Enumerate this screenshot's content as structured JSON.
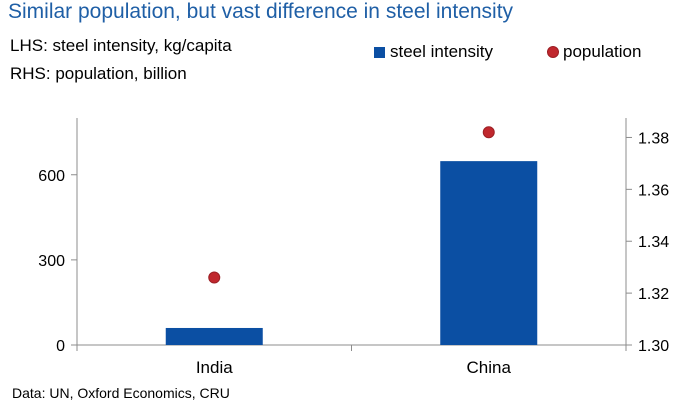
{
  "chart_data": {
    "type": "bar",
    "title": "Similar population, but vast difference in steel intensity",
    "subtitles": [
      "LHS: steel intensity, kg/capita",
      "RHS: population, billion"
    ],
    "categories": [
      "India",
      "China"
    ],
    "series": [
      {
        "name": "steel intensity",
        "type": "bar",
        "axis": "left",
        "values": [
          60,
          648
        ],
        "color": "#0b4fa3"
      },
      {
        "name": "population",
        "type": "scatter",
        "axis": "right",
        "values": [
          1.326,
          1.382
        ],
        "color": "#c0272d"
      }
    ],
    "y_left": {
      "ticks": [
        0,
        300,
        600
      ],
      "ylim": [
        0,
        800
      ]
    },
    "y_right": {
      "ticks": [
        "1.30",
        "1.32",
        "1.34",
        "1.36",
        "1.38"
      ],
      "ylim": [
        1.3,
        1.3875
      ]
    },
    "legend_position": "top-right",
    "grid": false,
    "source": "Data: UN, Oxford Economics, CRU"
  }
}
